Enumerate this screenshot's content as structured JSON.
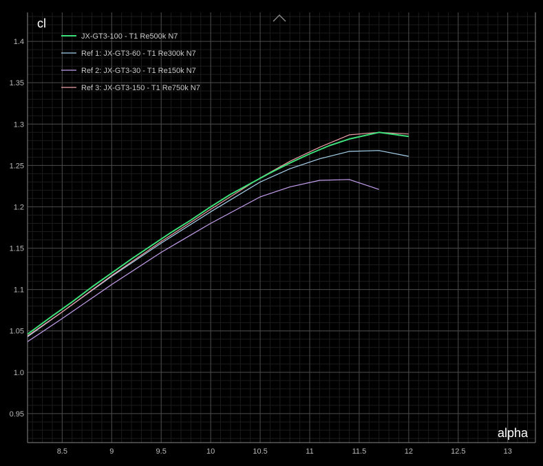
{
  "chart_data": {
    "type": "line",
    "xlabel": "alpha",
    "ylabel": "cl",
    "xlim": [
      8.15,
      13.28
    ],
    "ylim": [
      0.915,
      1.435
    ],
    "x_ticks": [
      "8.5",
      "9",
      "9.5",
      "10",
      "10.5",
      "11",
      "11.5",
      "12",
      "12.5",
      "13"
    ],
    "y_ticks": [
      "0.95",
      "1.0",
      "1.05",
      "1.1",
      "1.15",
      "1.2",
      "1.25",
      "1.3",
      "1.35",
      "1.4"
    ],
    "grid": true,
    "legend_position": "top-left",
    "series": [
      {
        "name": "JX-GT3-100 - T1 Re500k N7",
        "color": "#3ee07a",
        "x": [
          8.15,
          8.4,
          8.6,
          8.8,
          9.0,
          9.2,
          9.4,
          9.6,
          9.8,
          10.0,
          10.2,
          10.4,
          10.6,
          10.8,
          11.0,
          11.2,
          11.4,
          11.7,
          12.0
        ],
        "y": [
          1.046,
          1.068,
          1.085,
          1.103,
          1.12,
          1.137,
          1.153,
          1.169,
          1.184,
          1.2,
          1.215,
          1.228,
          1.241,
          1.253,
          1.264,
          1.274,
          1.282,
          1.29,
          1.285
        ]
      },
      {
        "name": "Ref 1: JX-GT3-60 - T1 Re300k N7",
        "color": "#a8d4f0",
        "x": [
          8.15,
          8.5,
          9.0,
          9.5,
          10.0,
          10.5,
          10.8,
          11.1,
          11.4,
          11.7,
          12.0
        ],
        "y": [
          1.043,
          1.073,
          1.116,
          1.156,
          1.194,
          1.23,
          1.246,
          1.258,
          1.267,
          1.268,
          1.261
        ]
      },
      {
        "name": "Ref 2: JX-GT3-30 - T1 Re150k N7",
        "color": "#c8a0f0",
        "x": [
          8.15,
          8.5,
          9.0,
          9.5,
          10.0,
          10.5,
          10.8,
          11.1,
          11.4,
          11.7
        ],
        "y": [
          1.037,
          1.065,
          1.106,
          1.145,
          1.18,
          1.212,
          1.224,
          1.232,
          1.233,
          1.221
        ]
      },
      {
        "name": "Ref 3: JX-GT3-150 - T1 Re750k N7",
        "color": "#f0a0a8",
        "x": [
          8.15,
          8.5,
          9.0,
          9.5,
          10.0,
          10.5,
          10.8,
          11.1,
          11.4,
          11.7,
          12.0
        ],
        "y": [
          1.044,
          1.073,
          1.117,
          1.158,
          1.197,
          1.235,
          1.255,
          1.272,
          1.287,
          1.29,
          1.288
        ]
      }
    ]
  }
}
